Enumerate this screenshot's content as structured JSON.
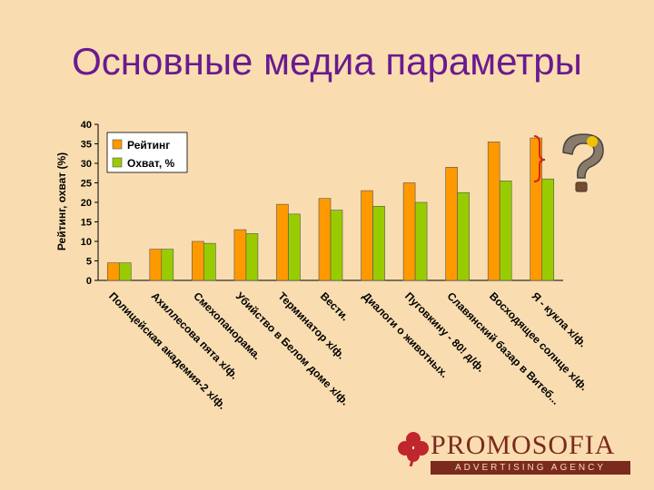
{
  "slide": {
    "title": "Основные медиа параметры"
  },
  "chart_data": {
    "type": "bar",
    "ylabel": "Рейтинг, охват (%)",
    "ylim": [
      0,
      40
    ],
    "yticks": [
      0,
      5,
      10,
      15,
      20,
      25,
      30,
      35,
      40
    ],
    "categories": [
      "Полицейская академия-2 х/ф.",
      "Ахиллесова пята х/ф.",
      "Смехопанорама.",
      "Убийство в Белом доме х/ф.",
      "Терминатор х/ф.",
      "Вести.",
      "Диалоги о животных.",
      "Пуговкину - 80! д/ф.",
      "Славянский базар в Витеб...",
      "Восходящее солнце х/ф.",
      "Я - кукла х/ф."
    ],
    "series": [
      {
        "name": "Рейтинг",
        "color": "#ff9900",
        "values": [
          4.5,
          8,
          10,
          13,
          19.5,
          21,
          23,
          25,
          29,
          35.5,
          36.5
        ]
      },
      {
        "name": "Охват, %",
        "color": "#99cc00",
        "values": [
          4.5,
          8,
          9.5,
          12,
          17,
          18,
          19,
          20,
          22.5,
          25.5,
          26
        ]
      }
    ],
    "legend": "top-left",
    "grid": false
  },
  "decor": {
    "question_icon": "question-mark-icon",
    "brace_icon": "red-brace-icon"
  },
  "logo": {
    "name": "PROMOSOFIA",
    "tagline": "ADVERTISING AGENCY",
    "icon": "clover-icon"
  }
}
